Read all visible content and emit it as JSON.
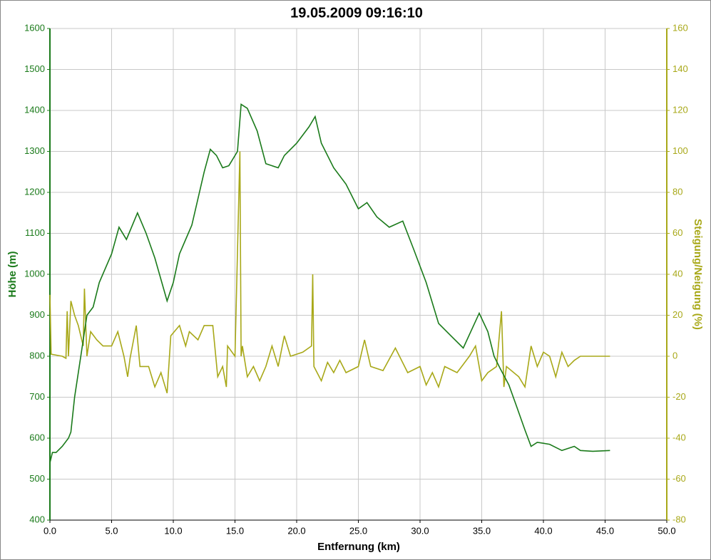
{
  "chart_data": {
    "type": "line",
    "title": "19.05.2009 09:16:10",
    "x_label": "Entfernung (km)",
    "y_label": "Höhe (m)",
    "y2_label": "Steigung/Neigung (%)",
    "xlim": [
      0,
      50
    ],
    "ylim": [
      400,
      1600
    ],
    "y2lim": [
      -80,
      160
    ],
    "grid": true,
    "xticks": [
      {
        "value": 0,
        "label": "0.0"
      },
      {
        "value": 5,
        "label": "5.0"
      },
      {
        "value": 10,
        "label": "10.0"
      },
      {
        "value": 15,
        "label": "15.0"
      },
      {
        "value": 20,
        "label": "20.0"
      },
      {
        "value": 25,
        "label": "25.0"
      },
      {
        "value": 30,
        "label": "30.0"
      },
      {
        "value": 35,
        "label": "35.0"
      },
      {
        "value": 40,
        "label": "40.0"
      },
      {
        "value": 45,
        "label": "45.0"
      },
      {
        "value": 50,
        "label": "50.0"
      }
    ],
    "yticks": [
      400,
      500,
      600,
      700,
      800,
      900,
      1000,
      1100,
      1200,
      1300,
      1400,
      1500,
      1600
    ],
    "y2ticks": [
      -80,
      -60,
      -40,
      -20,
      0,
      20,
      40,
      60,
      80,
      100,
      120,
      140,
      160
    ],
    "series": [
      {
        "color": "#1a7a1a",
        "axis": "y",
        "x": [
          0,
          0.2,
          0.5,
          1.0,
          1.5,
          1.7,
          2.0,
          2.5,
          3.0,
          3.5,
          4.0,
          5.0,
          5.6,
          6.2,
          7.1,
          7.8,
          8.5,
          9.5,
          10.0,
          10.5,
          11.5,
          12.5,
          13.0,
          13.5,
          14.0,
          14.5,
          15.2,
          15.5,
          16.0,
          16.8,
          17.5,
          18.5,
          19.0,
          20.0,
          21.0,
          21.5,
          22.0,
          23.0,
          24.0,
          25.0,
          25.7,
          26.5,
          27.5,
          28.6,
          29.5,
          30.5,
          31.5,
          32.5,
          33.5,
          34.8,
          35.5,
          36.0,
          36.5,
          37.2,
          37.8,
          38.5,
          39.0,
          39.5,
          40.5,
          41.5,
          42.5,
          43.0,
          44.0,
          45.4
        ],
        "values": [
          540,
          565,
          565,
          580,
          600,
          615,
          700,
          800,
          900,
          920,
          980,
          1050,
          1115,
          1085,
          1150,
          1100,
          1040,
          935,
          980,
          1050,
          1120,
          1250,
          1305,
          1290,
          1260,
          1265,
          1300,
          1415,
          1405,
          1350,
          1270,
          1260,
          1290,
          1320,
          1360,
          1385,
          1320,
          1260,
          1220,
          1160,
          1175,
          1140,
          1115,
          1130,
          1060,
          980,
          880,
          850,
          820,
          905,
          860,
          800,
          770,
          730,
          680,
          620,
          580,
          590,
          585,
          570,
          580,
          570,
          568,
          570
        ]
      },
      {
        "color": "#a8a818",
        "axis": "y2",
        "x": [
          0,
          0.1,
          1.0,
          1.3,
          1.4,
          1.5,
          1.7,
          2.0,
          2.3,
          2.7,
          2.8,
          3.0,
          3.3,
          3.8,
          4.3,
          5.0,
          5.5,
          6.0,
          6.3,
          6.5,
          7.0,
          7.3,
          8.0,
          8.5,
          9.0,
          9.5,
          9.8,
          10.5,
          11.0,
          11.3,
          12.0,
          12.5,
          13.2,
          13.6,
          14.0,
          14.3,
          14.4,
          15.0,
          15.4,
          15.5,
          15.6,
          16.0,
          16.5,
          17.0,
          17.5,
          18.0,
          18.5,
          19.0,
          19.5,
          20.5,
          21.2,
          21.3,
          21.4,
          22.0,
          22.5,
          23.0,
          23.5,
          24.0,
          25.0,
          25.5,
          26.0,
          27.0,
          28.0,
          29.0,
          30.0,
          30.5,
          31.0,
          31.5,
          32.0,
          33.0,
          33.5,
          34.0,
          34.5,
          35.0,
          35.5,
          36.2,
          36.6,
          36.8,
          37.0,
          38.0,
          38.5,
          39.0,
          39.5,
          40.0,
          40.5,
          41.0,
          41.5,
          42.0,
          42.5,
          43.0,
          44.0,
          45.4
        ],
        "values": [
          30,
          1,
          0,
          -1,
          22,
          0,
          27,
          20,
          15,
          5,
          33,
          0,
          12,
          8,
          5,
          5,
          12,
          0,
          -10,
          -1,
          15,
          -5,
          -5,
          -15,
          -8,
          -18,
          10,
          15,
          5,
          12,
          8,
          15,
          15,
          -10,
          -5,
          -15,
          5,
          0,
          100,
          0,
          5,
          -10,
          -5,
          -12,
          -5,
          5,
          -5,
          10,
          0,
          2,
          5,
          40,
          -5,
          -12,
          -3,
          -8,
          -2,
          -8,
          -5,
          8,
          -5,
          -7,
          4,
          -8,
          -5,
          -14,
          -8,
          -15,
          -5,
          -8,
          -4,
          0,
          5,
          -12,
          -8,
          -5,
          22,
          -15,
          -5,
          -10,
          -15,
          5,
          -5,
          2,
          0,
          -10,
          2,
          -5,
          -2,
          0,
          0,
          0
        ]
      }
    ]
  }
}
